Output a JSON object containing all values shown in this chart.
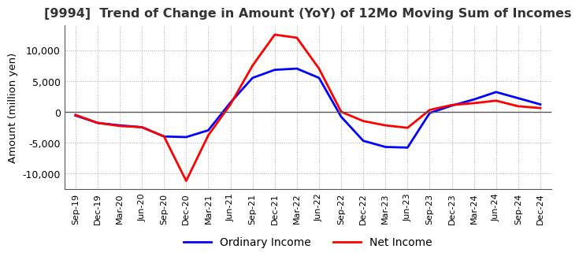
{
  "title": "[9994]  Trend of Change in Amount (YoY) of 12Mo Moving Sum of Incomes",
  "ylabel": "Amount (million yen)",
  "x_labels": [
    "Sep-19",
    "Dec-19",
    "Mar-20",
    "Jun-20",
    "Sep-20",
    "Dec-20",
    "Mar-21",
    "Jun-21",
    "Sep-21",
    "Dec-21",
    "Mar-22",
    "Jun-22",
    "Sep-22",
    "Dec-22",
    "Mar-23",
    "Jun-23",
    "Sep-23",
    "Dec-23",
    "Mar-24",
    "Jun-24",
    "Sep-24",
    "Dec-24"
  ],
  "ordinary_income": [
    -600,
    -1800,
    -2200,
    -2500,
    -4000,
    -4100,
    -3000,
    1500,
    5500,
    6800,
    7000,
    5500,
    -800,
    -4700,
    -5700,
    -5800,
    -200,
    1000,
    2000,
    3200,
    2200,
    1200
  ],
  "net_income": [
    -500,
    -1800,
    -2300,
    -2500,
    -4000,
    -11200,
    -3800,
    1200,
    7500,
    12500,
    12000,
    7000,
    0,
    -1500,
    -2200,
    -2600,
    300,
    1100,
    1400,
    1800,
    900,
    600
  ],
  "ordinary_color": "#0000ff",
  "net_color": "#ff0000",
  "ylim": [
    -12500,
    14000
  ],
  "yticks": [
    -10000,
    -5000,
    0,
    5000,
    10000
  ],
  "background_color": "#ffffff",
  "grid_color": "#aaaaaa"
}
